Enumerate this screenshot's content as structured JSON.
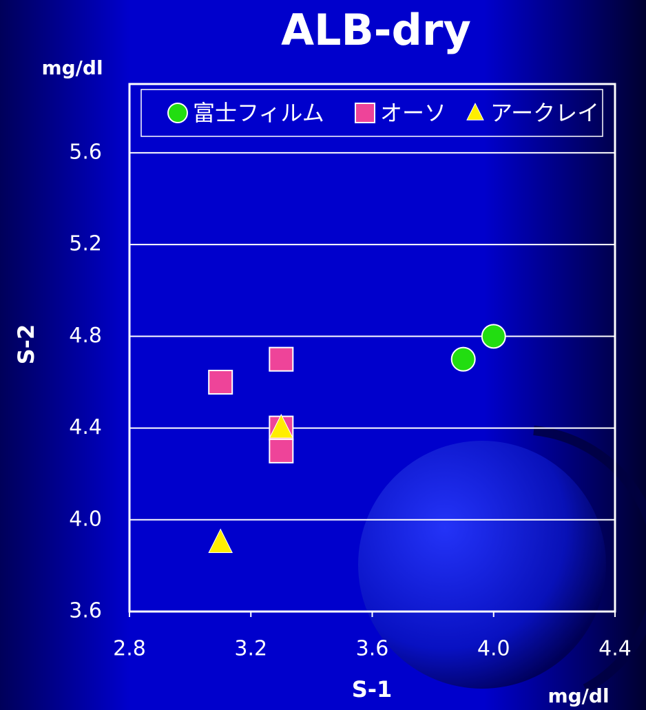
{
  "chart_data": {
    "type": "scatter",
    "title": "ALB-dry",
    "x_label": "S-1",
    "y_label": "S-2",
    "x_unit": "mg/dl",
    "y_unit": "mg/dl",
    "xlim": [
      2.8,
      4.4
    ],
    "xticks": [
      2.8,
      3.2,
      3.6,
      {
        "value": 4.0,
        "label": "4.0"
      },
      4.4
    ],
    "ylim": [
      3.6,
      5.9
    ],
    "yticks": [
      3.6,
      {
        "value": 4.0,
        "label": "4.0"
      },
      4.4,
      4.8,
      5.2,
      5.6
    ],
    "grid": true,
    "legend": "top",
    "series": [
      {
        "name": "富士フィルム",
        "color": "#22dd11",
        "marker": "circle",
        "x": [
          3.9,
          4.0
        ],
        "values": [
          4.7,
          4.8
        ]
      },
      {
        "name": "オーソ",
        "color": "#ee4499",
        "marker": "square",
        "x": [
          3.1,
          3.3,
          3.3,
          3.3
        ],
        "values": [
          4.6,
          4.7,
          4.4,
          4.3
        ]
      },
      {
        "name": "アークレイ",
        "color": "#ffee00",
        "marker": "triangle",
        "x": [
          3.3,
          3.1
        ],
        "values": [
          4.4,
          3.9
        ]
      }
    ]
  }
}
